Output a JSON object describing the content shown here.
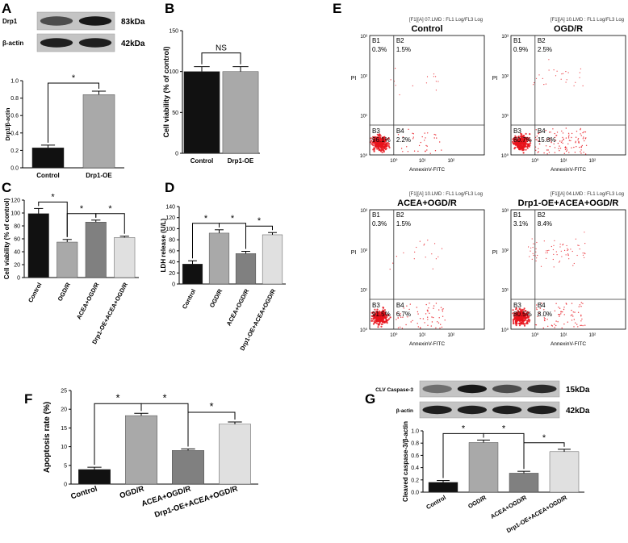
{
  "panels": {
    "A": {
      "letter": "A",
      "blot": {
        "rows": [
          {
            "label": "Drp1",
            "kda": "83kDa",
            "intensities": [
              0.55,
              0.95
            ]
          },
          {
            "label": "β-actin",
            "kda": "42kDa",
            "intensities": [
              0.9,
              0.9
            ]
          }
        ]
      },
      "chart": {
        "type": "bar",
        "ylabel": "Drp1/β-actin",
        "ylim": [
          0,
          1.0
        ],
        "yticks": [
          "0.0",
          "0.2",
          "0.4",
          "0.6",
          "0.8",
          "1.0"
        ],
        "categories": [
          "Control",
          "Drp1-OE"
        ],
        "values": [
          0.23,
          0.84
        ],
        "errors": [
          0.03,
          0.04
        ],
        "colors": [
          "#111111",
          "#a9a9a9"
        ],
        "significance": [
          {
            "from": 0,
            "to": 1,
            "label": "*"
          }
        ]
      }
    },
    "B": {
      "letter": "B",
      "chart": {
        "type": "bar",
        "ylabel": "Cell viability (% of control)",
        "ylim": [
          0,
          150
        ],
        "yticks": [
          "0",
          "50",
          "100",
          "150"
        ],
        "categories": [
          "Control",
          "Drp1-OE"
        ],
        "values": [
          100,
          100
        ],
        "errors": [
          6,
          6
        ],
        "colors": [
          "#111111",
          "#a9a9a9"
        ],
        "significance": [
          {
            "from": 0,
            "to": 1,
            "label": "NS"
          }
        ]
      }
    },
    "C": {
      "letter": "C",
      "chart": {
        "type": "bar",
        "ylabel": "Cell viability (% of control)",
        "ylim": [
          0,
          120
        ],
        "yticks": [
          "0",
          "20",
          "40",
          "60",
          "80",
          "100",
          "120"
        ],
        "categories": [
          "Control",
          "OGD/R",
          "ACEA+OGD/R",
          "Drp1-OE+ACEA+OGD/R"
        ],
        "values": [
          99,
          55,
          86,
          62
        ],
        "errors": [
          8,
          4,
          3,
          2
        ],
        "colors": [
          "#111111",
          "#a9a9a9",
          "#808080",
          "#e0e0e0"
        ],
        "significance": [
          {
            "from": 0,
            "to": 1,
            "label": "*"
          },
          {
            "from": 1,
            "to": 2,
            "label": "*"
          },
          {
            "from": 2,
            "to": 3,
            "label": "*"
          }
        ]
      }
    },
    "D": {
      "letter": "D",
      "chart": {
        "type": "bar",
        "ylabel": "LDH release (U/L)",
        "ylim": [
          0,
          140
        ],
        "yticks": [
          "0",
          "20",
          "40",
          "60",
          "80",
          "100",
          "120",
          "140"
        ],
        "categories": [
          "Control",
          "OGD/R",
          "ACEA+OGD/R",
          "Drp1-OE+ACEA+OGD/R"
        ],
        "values": [
          36,
          92,
          55,
          89
        ],
        "errors": [
          6,
          6,
          4,
          4
        ],
        "colors": [
          "#111111",
          "#a9a9a9",
          "#808080",
          "#e0e0e0"
        ],
        "significance": [
          {
            "from": 0,
            "to": 1,
            "label": "*"
          },
          {
            "from": 1,
            "to": 2,
            "label": "*"
          },
          {
            "from": 2,
            "to": 3,
            "label": "*"
          }
        ]
      }
    },
    "E": {
      "letter": "E",
      "x_axis_label": "AnnexinV-FITC",
      "y_axis_label": "PI",
      "x_ticks": [
        "10⁰",
        "10¹",
        "10²"
      ],
      "y_ticks": [
        "10³",
        "10²",
        "10¹",
        "10⁰"
      ],
      "plots": [
        {
          "file": "[F1][A] 07.LMD : FL1 Log/FL3 Log",
          "name": "Control",
          "B1": "0.3%",
          "B2": "1.5%",
          "B3": "96.1%",
          "B4": "2.2%",
          "upper_density": 0.2,
          "lower_right_density": 0.3
        },
        {
          "file": "[F1][A] 10.LMD : FL1 Log/FL3 Log",
          "name": "OGD/R",
          "B1": "0.9%",
          "B2": "2.5%",
          "B3": "80.7%",
          "B4": "15.8%",
          "upper_density": 0.35,
          "lower_right_density": 1.0
        },
        {
          "file": "[F1][A] 10.LMD : FL1 Log/FL3 Log",
          "name": "ACEA+OGD/R",
          "B1": "0.3%",
          "B2": "1.5%",
          "B3": "91.5%",
          "B4": "6.7%",
          "upper_density": 0.25,
          "lower_right_density": 0.55
        },
        {
          "file": "[F1][A] 04.LMD : FL1 Log/FL3 Log",
          "name": "Drp1-OE+ACEA+OGD/R",
          "B1": "3.1%",
          "B2": "8.4%",
          "B3": "80.5%",
          "B4": "8.0%",
          "upper_density": 1.0,
          "lower_right_density": 0.6
        }
      ]
    },
    "F": {
      "letter": "F",
      "chart": {
        "type": "bar",
        "ylabel": "Apoptosis rate (%)",
        "ylim": [
          0,
          25
        ],
        "yticks": [
          "0",
          "5",
          "10",
          "15",
          "20",
          "25"
        ],
        "categories": [
          "Control",
          "OGD/R",
          "ACEA+OGD/R",
          "Drp1-OE+ACEA+OGD/R"
        ],
        "values": [
          3.9,
          18.3,
          9.0,
          16.0
        ],
        "errors": [
          0.6,
          0.6,
          0.4,
          0.6
        ],
        "colors": [
          "#111111",
          "#a9a9a9",
          "#808080",
          "#e0e0e0"
        ],
        "significance": [
          {
            "from": 0,
            "to": 1,
            "label": "*"
          },
          {
            "from": 1,
            "to": 2,
            "label": "*"
          },
          {
            "from": 2,
            "to": 3,
            "label": "*"
          }
        ]
      }
    },
    "G": {
      "letter": "G",
      "blot": {
        "rows": [
          {
            "label": "CLV Caspase-3",
            "kda": "15kDa",
            "intensities": [
              0.3,
              0.95,
              0.55,
              0.8
            ]
          },
          {
            "label": "β-actin",
            "kda": "42kDa",
            "intensities": [
              0.9,
              0.9,
              0.9,
              0.9
            ]
          }
        ]
      },
      "chart": {
        "type": "bar",
        "ylabel": "Cleaved caspase-3/β-actin",
        "ylim": [
          0,
          1.0
        ],
        "yticks": [
          "0.0",
          "0.2",
          "0.4",
          "0.6",
          "0.8",
          "1.0"
        ],
        "categories": [
          "Control",
          "OGD/R",
          "ACEA+OGD/R",
          "Drp1-OE+ACEA+OGD/R"
        ],
        "values": [
          0.16,
          0.81,
          0.31,
          0.66
        ],
        "errors": [
          0.03,
          0.04,
          0.03,
          0.04
        ],
        "colors": [
          "#111111",
          "#a9a9a9",
          "#808080",
          "#e0e0e0"
        ],
        "significance": [
          {
            "from": 0,
            "to": 1,
            "label": "*"
          },
          {
            "from": 1,
            "to": 2,
            "label": "*"
          },
          {
            "from": 2,
            "to": 3,
            "label": "*"
          }
        ]
      }
    }
  }
}
